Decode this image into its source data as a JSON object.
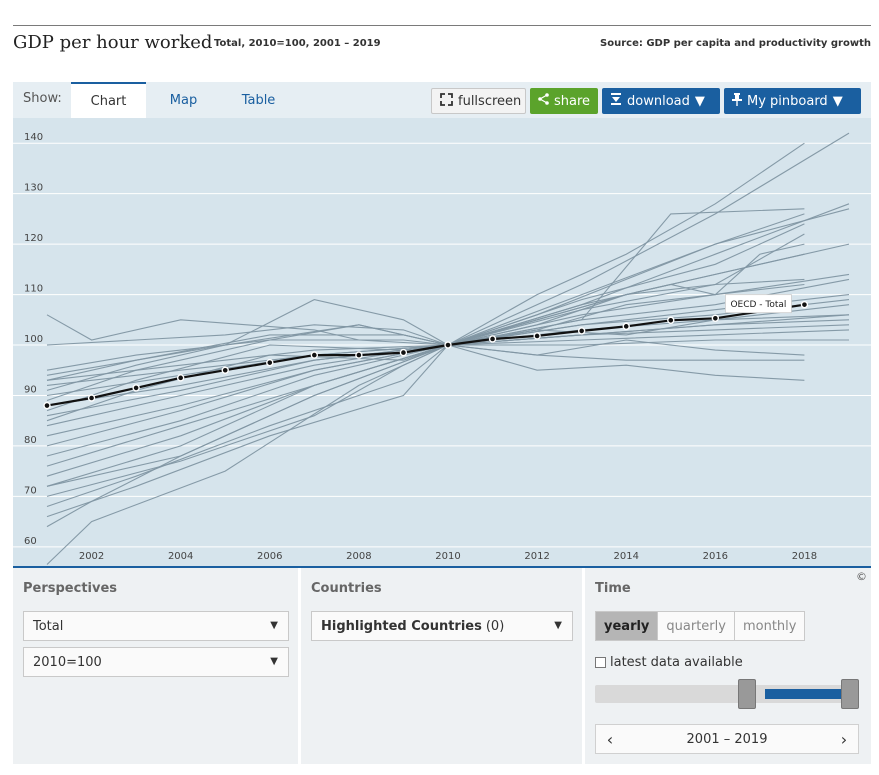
{
  "header": {
    "title": "GDP per hour worked",
    "subtitle": "Total, 2010=100, 2001 – 2019",
    "source": "Source: GDP per capita and productivity growth"
  },
  "toolbar": {
    "show_label": "Show:",
    "tabs": [
      {
        "label": "Chart",
        "active": true
      },
      {
        "label": "Map",
        "active": false
      },
      {
        "label": "Table",
        "active": false
      }
    ],
    "fullscreen_label": "fullscreen",
    "share_label": "share",
    "download_label": "download",
    "pinboard_label": "My pinboard"
  },
  "colors": {
    "accent": "#1a5fa0",
    "share_green": "#5ba32b",
    "plot_bg": "#d6e4ec",
    "country_line": "#8196a3",
    "highlight_line": "#111111"
  },
  "chart_data": {
    "type": "line",
    "title": "GDP per hour worked",
    "xlabel": "",
    "ylabel": "",
    "xlim": [
      2001,
      2019
    ],
    "ylim": [
      56,
      145
    ],
    "x_ticks": [
      2002,
      2004,
      2006,
      2008,
      2010,
      2012,
      2014,
      2016,
      2018
    ],
    "y_ticks": [
      60,
      70,
      80,
      90,
      100,
      110,
      120,
      130,
      140
    ],
    "grid": true,
    "highlight": {
      "label": "OECD - Total",
      "x": [
        2001,
        2002,
        2003,
        2004,
        2005,
        2006,
        2007,
        2008,
        2009,
        2010,
        2011,
        2012,
        2013,
        2014,
        2015,
        2016,
        2018
      ],
      "values": [
        88.0,
        89.5,
        91.5,
        93.5,
        95.0,
        96.5,
        98.0,
        98.0,
        98.5,
        100.0,
        101.2,
        101.8,
        102.8,
        103.7,
        104.9,
        105.3,
        108.0
      ]
    },
    "series": [
      {
        "x": [
          2001,
          2002,
          2005,
          2008,
          2010,
          2013,
          2016,
          2019
        ],
        "values": [
          56.5,
          65,
          75,
          92,
          100,
          112,
          126,
          142
        ]
      },
      {
        "x": [
          2001,
          2002,
          2004,
          2007,
          2010,
          2012,
          2014,
          2016,
          2018
        ],
        "values": [
          64,
          69,
          78,
          90,
          100,
          110,
          118,
          128,
          140
        ]
      },
      {
        "x": [
          2001,
          2003,
          2006,
          2009,
          2010,
          2013,
          2016,
          2019
        ],
        "values": [
          66,
          72,
          82,
          90,
          100,
          108,
          118,
          128
        ]
      },
      {
        "x": [
          2001,
          2003,
          2006,
          2009,
          2010,
          2013,
          2015,
          2018
        ],
        "values": [
          68,
          74,
          84,
          93,
          100,
          105,
          126,
          127
        ]
      },
      {
        "x": [
          2001,
          2004,
          2007,
          2009,
          2010,
          2013,
          2016,
          2019
        ],
        "values": [
          70,
          77,
          86,
          96,
          100,
          110,
          120,
          127
        ]
      },
      {
        "x": [
          2001,
          2004,
          2007,
          2010,
          2013,
          2016,
          2018
        ],
        "values": [
          72,
          78,
          90,
          100,
          109,
          116,
          124
        ]
      },
      {
        "x": [
          2001,
          2004,
          2007,
          2010,
          2013,
          2016,
          2019
        ],
        "values": [
          74,
          82,
          92,
          100,
          108,
          114,
          120
        ]
      },
      {
        "x": [
          2001,
          2004,
          2007,
          2010,
          2013,
          2016,
          2018
        ],
        "values": [
          76,
          84,
          92,
          100,
          107,
          112,
          122
        ]
      },
      {
        "x": [
          2001,
          2004,
          2007,
          2010,
          2013,
          2016,
          2019
        ],
        "values": [
          78,
          85,
          94,
          100,
          106,
          110,
          114
        ]
      },
      {
        "x": [
          2001,
          2004,
          2007,
          2010,
          2013,
          2016,
          2019
        ],
        "values": [
          80,
          87,
          95,
          100,
          105,
          108,
          113
        ]
      },
      {
        "x": [
          2001,
          2004,
          2007,
          2010,
          2013,
          2016,
          2019
        ],
        "values": [
          82,
          88,
          95,
          100,
          104,
          107,
          110
        ]
      },
      {
        "x": [
          2001,
          2004,
          2007,
          2010,
          2013,
          2016,
          2019
        ],
        "values": [
          84,
          90,
          96,
          100,
          104,
          106,
          109
        ]
      },
      {
        "x": [
          2001,
          2004,
          2007,
          2010,
          2013,
          2016,
          2019
        ],
        "values": [
          86,
          91,
          97,
          100,
          103,
          105,
          108
        ]
      },
      {
        "x": [
          2001,
          2004,
          2007,
          2010,
          2013,
          2016,
          2019
        ],
        "values": [
          88,
          92,
          97,
          100,
          102,
          104,
          106
        ]
      },
      {
        "x": [
          2001,
          2004,
          2007,
          2010,
          2013,
          2016,
          2019
        ],
        "values": [
          90,
          94,
          98,
          100,
          102,
          104,
          105
        ]
      },
      {
        "x": [
          2001,
          2004,
          2007,
          2010,
          2013,
          2016,
          2019
        ],
        "values": [
          92,
          95,
          98,
          100,
          102,
          103,
          104
        ]
      },
      {
        "x": [
          2001,
          2004,
          2007,
          2010,
          2013,
          2016,
          2019
        ],
        "values": [
          93,
          96,
          99,
          100,
          101,
          102,
          103
        ]
      },
      {
        "x": [
          2001,
          2002,
          2004,
          2007,
          2008,
          2010,
          2012,
          2014,
          2016,
          2018
        ],
        "values": [
          106,
          101,
          105,
          103,
          101,
          100,
          98,
          97,
          97,
          97
        ]
      },
      {
        "x": [
          2001,
          2003,
          2005,
          2007,
          2009,
          2010,
          2012,
          2014,
          2016,
          2018
        ],
        "values": [
          100,
          101,
          102,
          104,
          103,
          100,
          95,
          96,
          94,
          93
        ]
      },
      {
        "x": [
          2001,
          2003,
          2006,
          2009,
          2010,
          2012,
          2014,
          2016,
          2018
        ],
        "values": [
          94,
          97,
          102,
          102,
          100,
          98,
          101,
          99,
          98
        ]
      },
      {
        "x": [
          2001,
          2003,
          2006,
          2009,
          2010,
          2013,
          2016,
          2019
        ],
        "values": [
          95,
          98,
          101,
          101,
          100,
          100,
          101,
          101
        ]
      },
      {
        "x": [
          2001,
          2003,
          2005,
          2008,
          2010,
          2012,
          2014,
          2016,
          2019
        ],
        "values": [
          93,
          97,
          100,
          104,
          100,
          103,
          102,
          105,
          106
        ]
      },
      {
        "x": [
          2001,
          2003,
          2005,
          2007,
          2009,
          2010,
          2012,
          2014,
          2016,
          2018
        ],
        "values": [
          91,
          96,
          100,
          109,
          105,
          100,
          104,
          110,
          112,
          113
        ]
      },
      {
        "x": [
          2001,
          2003,
          2006,
          2008,
          2009,
          2010,
          2012,
          2014,
          2016,
          2018
        ],
        "values": [
          89,
          95,
          101,
          104,
          102,
          100,
          103,
          108,
          110,
          112
        ]
      },
      {
        "x": [
          2001,
          2003,
          2006,
          2009,
          2010,
          2012,
          2014,
          2016,
          2018
        ],
        "values": [
          87,
          93,
          100,
          99,
          100,
          105,
          110,
          114,
          118
        ]
      },
      {
        "x": [
          2001,
          2003,
          2006,
          2009,
          2010,
          2012,
          2014,
          2016,
          2018
        ],
        "values": [
          85,
          91,
          98,
          97,
          100,
          106,
          113,
          120,
          126
        ]
      },
      {
        "x": [
          2001,
          2004,
          2007,
          2010,
          2012,
          2014,
          2015,
          2016,
          2017,
          2018
        ],
        "values": [
          72,
          80,
          92,
          100,
          105,
          110,
          112,
          110,
          118,
          120
        ]
      }
    ]
  },
  "perspectives": {
    "title": "Perspectives",
    "select1": "Total",
    "select2": "2010=100"
  },
  "countries": {
    "title": "Countries",
    "select_label": "Highlighted Countries",
    "select_count": "(0)"
  },
  "time": {
    "title": "Time",
    "options": [
      {
        "label": "yearly",
        "active": true
      },
      {
        "label": "quarterly",
        "active": false
      },
      {
        "label": "monthly",
        "active": false
      }
    ],
    "latest_label": "latest data available",
    "range_text": "2001 – 2019",
    "slider_selection": [
      2010,
      2019
    ]
  },
  "copyright": "©"
}
